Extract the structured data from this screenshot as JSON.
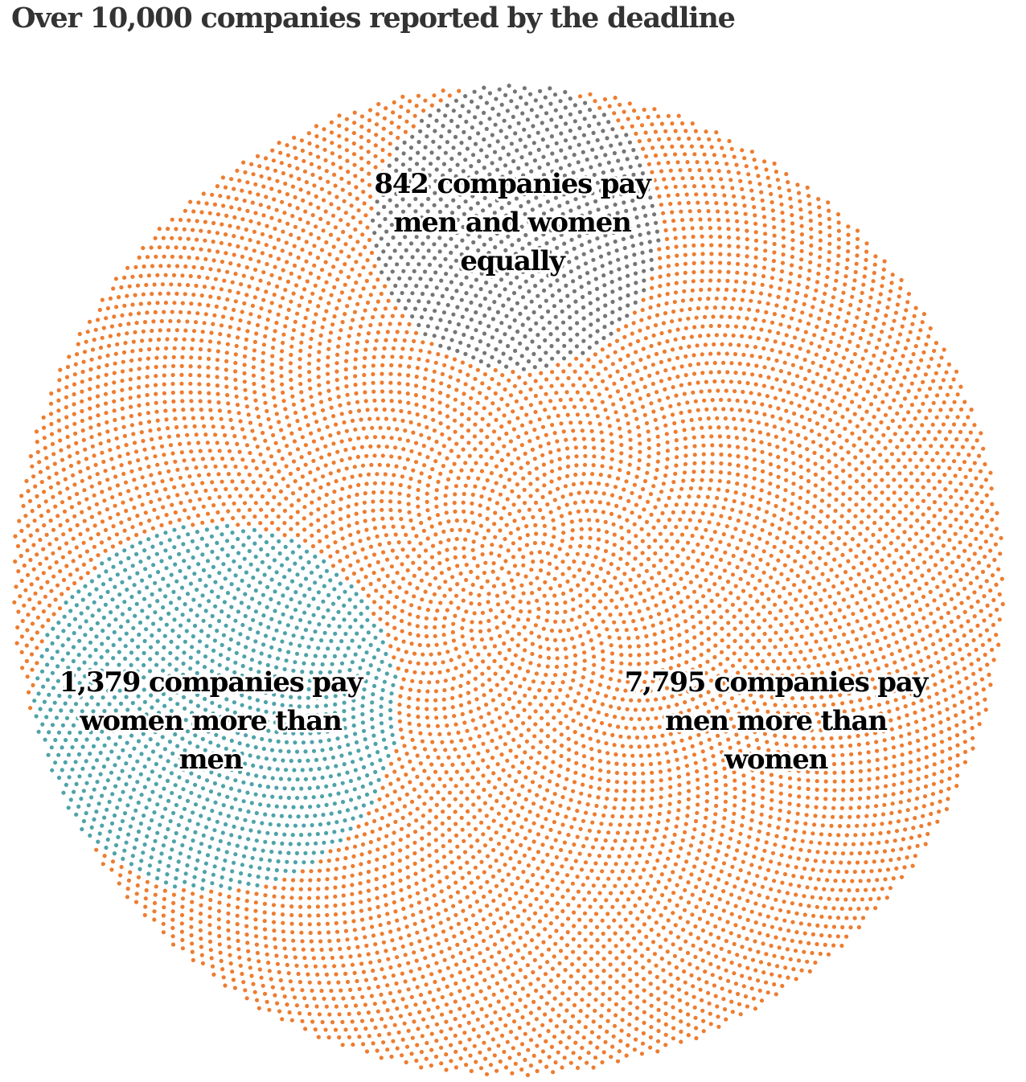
{
  "title": "Over 10,000 companies reported by the deadline",
  "chart_data": {
    "type": "dot-cluster",
    "title": "Over 10,000 companies reported by the deadline",
    "groups": [
      {
        "key": "men_more",
        "count": 7795,
        "color": "#ed7d31",
        "label_lines": [
          "7,795 companies pay",
          "men more than",
          "women"
        ]
      },
      {
        "key": "women_more",
        "count": 1379,
        "color": "#4fa3aa",
        "label_lines": [
          "1,379 companies pay",
          "women more than",
          "men"
        ]
      },
      {
        "key": "equal",
        "count": 842,
        "color": "#767676",
        "label_lines": [
          "842 companies pay",
          "men and women",
          "equally"
        ]
      }
    ]
  }
}
